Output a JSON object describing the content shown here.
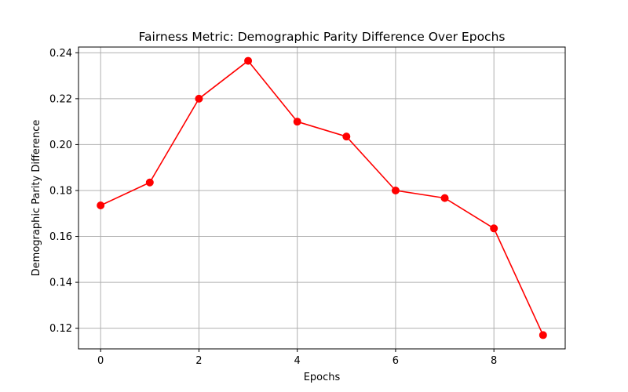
{
  "chart_data": {
    "type": "line",
    "title": "Fairness Metric: Demographic Parity Difference Over Epochs",
    "xlabel": "Epochs",
    "ylabel": "Demographic Parity Difference",
    "x": [
      0,
      1,
      2,
      3,
      4,
      5,
      6,
      7,
      8,
      9
    ],
    "series": [
      {
        "values": [
          0.1735,
          0.1835,
          0.22,
          0.2365,
          0.21,
          0.2035,
          0.18,
          0.1767,
          0.1635,
          0.117
        ],
        "color": "#ff0000",
        "marker": "circle"
      }
    ],
    "xlim": [
      -0.45,
      9.45
    ],
    "ylim": [
      0.111,
      0.2425
    ],
    "xticks": [
      0,
      2,
      4,
      6,
      8
    ],
    "xtick_labels": [
      "0",
      "2",
      "4",
      "6",
      "8"
    ],
    "yticks": [
      0.12,
      0.14,
      0.16,
      0.18,
      0.2,
      0.22,
      0.24
    ],
    "ytick_labels": [
      "0.12",
      "0.14",
      "0.16",
      "0.18",
      "0.20",
      "0.22",
      "0.24"
    ],
    "grid": true,
    "grid_color": "#b0b0b0",
    "axis_color": "#000000"
  }
}
